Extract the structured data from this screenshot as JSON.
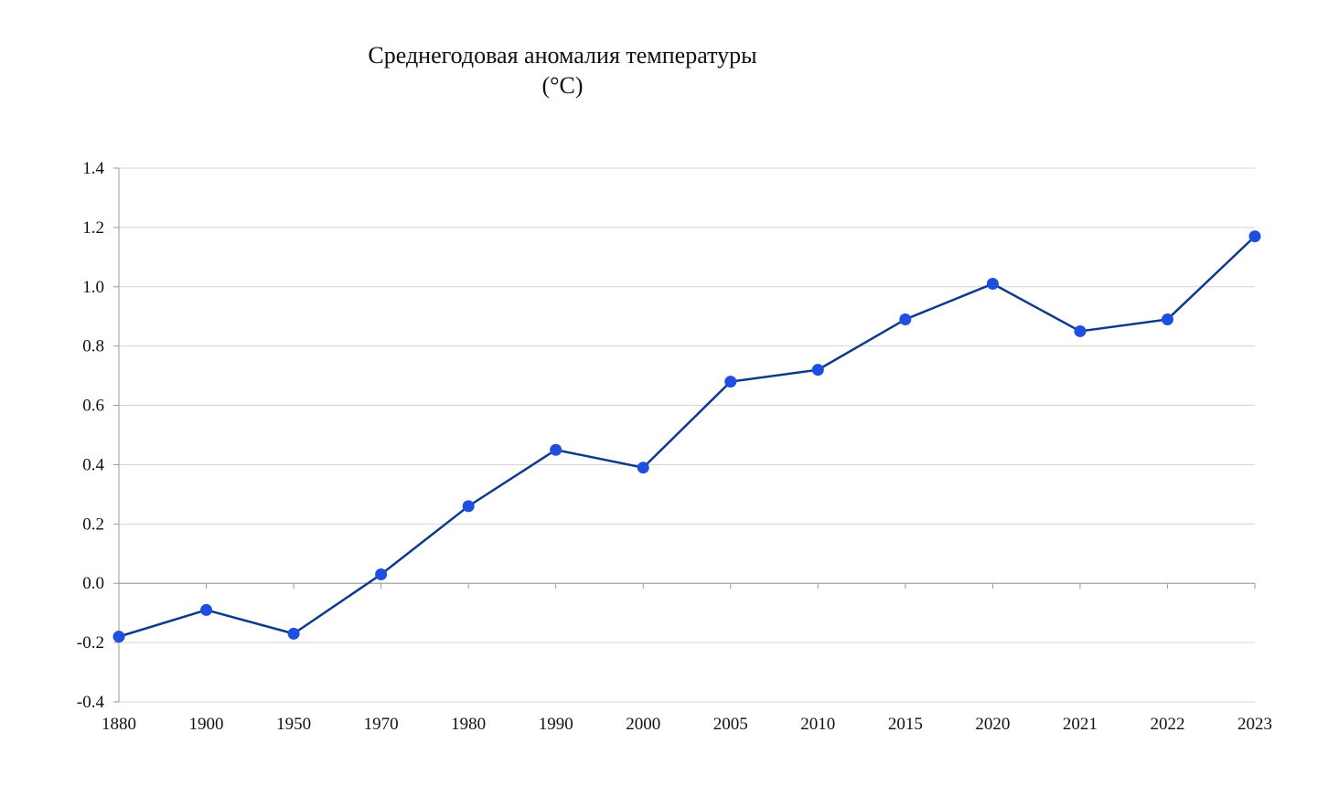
{
  "chart_data": {
    "type": "line",
    "title_line1": "Среднегодовая аномалия температуры",
    "title_line2": "(°C)",
    "xlabel": "",
    "ylabel": "",
    "categories": [
      "1880",
      "1900",
      "1950",
      "1970",
      "1980",
      "1990",
      "2000",
      "2005",
      "2010",
      "2015",
      "2020",
      "2021",
      "2022",
      "2023"
    ],
    "series": [
      {
        "values": [
          -0.18,
          -0.09,
          -0.17,
          0.03,
          0.26,
          0.45,
          0.39,
          0.68,
          0.72,
          0.89,
          1.01,
          0.85,
          0.89,
          1.17
        ]
      }
    ],
    "ylim": [
      -0.4,
      1.4
    ],
    "yticks": [
      "-0.4",
      "-0.2",
      "0.0",
      "0.2",
      "0.4",
      "0.6",
      "0.8",
      "1.0",
      "1.2",
      "1.4"
    ],
    "grid": true,
    "legend": "none",
    "colors": {
      "line": "#0d3a8c",
      "marker": "#1f4fe0",
      "grid": "#d4d4d4",
      "axis": "#9a9a9a"
    }
  }
}
